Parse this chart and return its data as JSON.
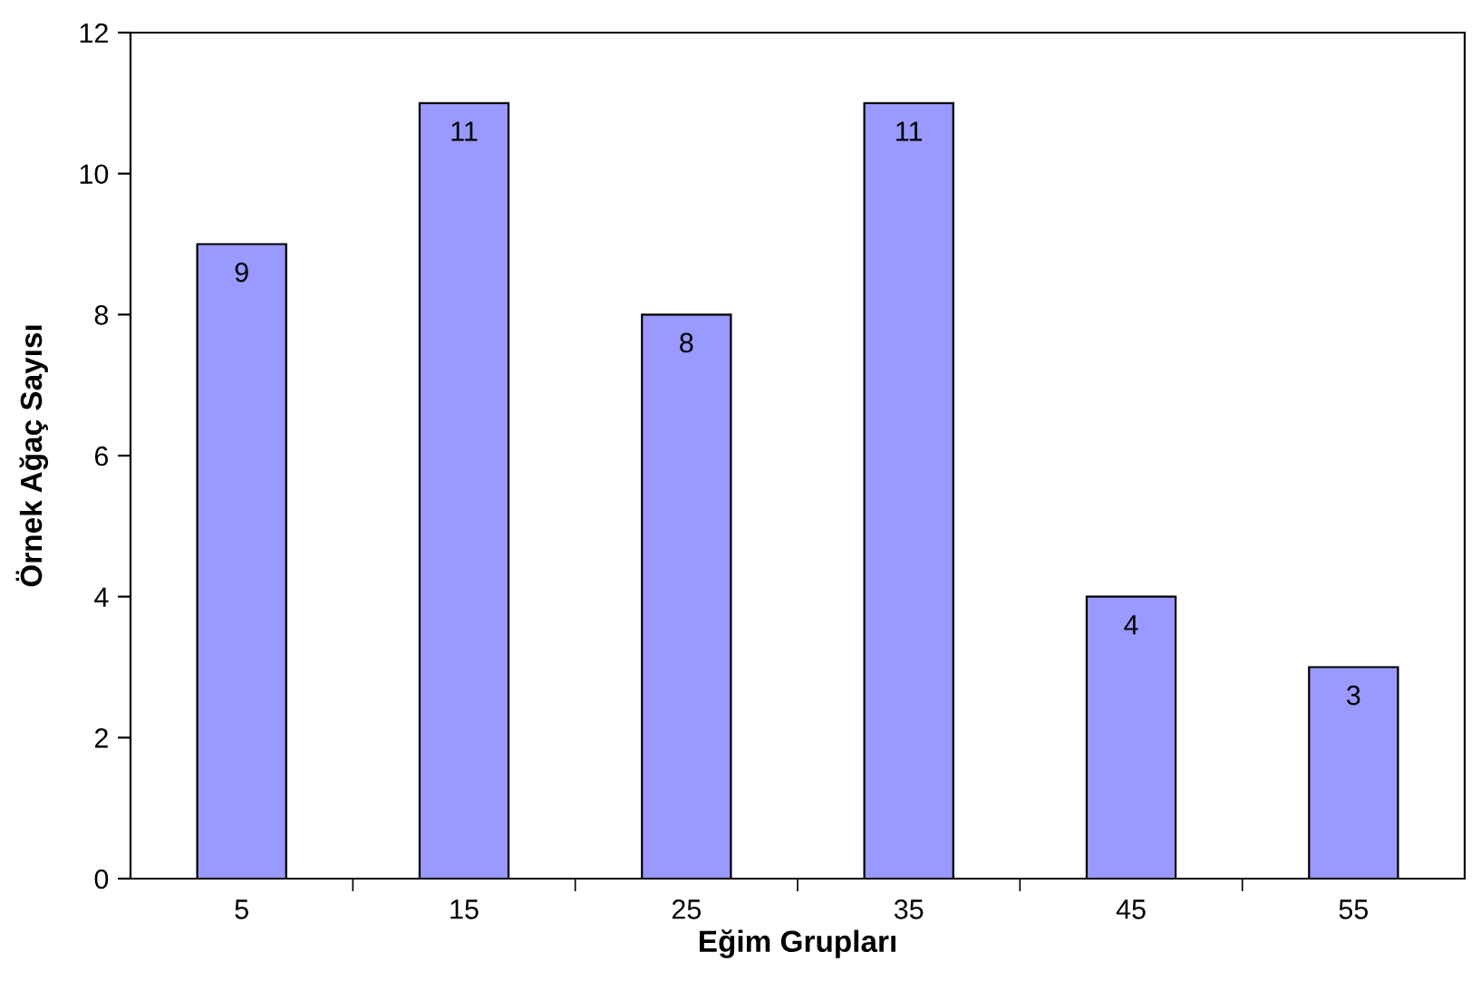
{
  "chart_data": {
    "type": "bar",
    "xlabel": "Eğim Grupları",
    "ylabel": "Örnek Ağaç Sayısı",
    "categories": [
      "5",
      "15",
      "25",
      "35",
      "45",
      "55"
    ],
    "values": [
      9,
      11,
      8,
      11,
      4,
      3
    ],
    "color": "#9999ff",
    "ylim": [
      0,
      12
    ],
    "yticks": [
      0,
      2,
      4,
      6,
      8,
      10,
      12
    ],
    "grid": false,
    "data_labels": true
  }
}
